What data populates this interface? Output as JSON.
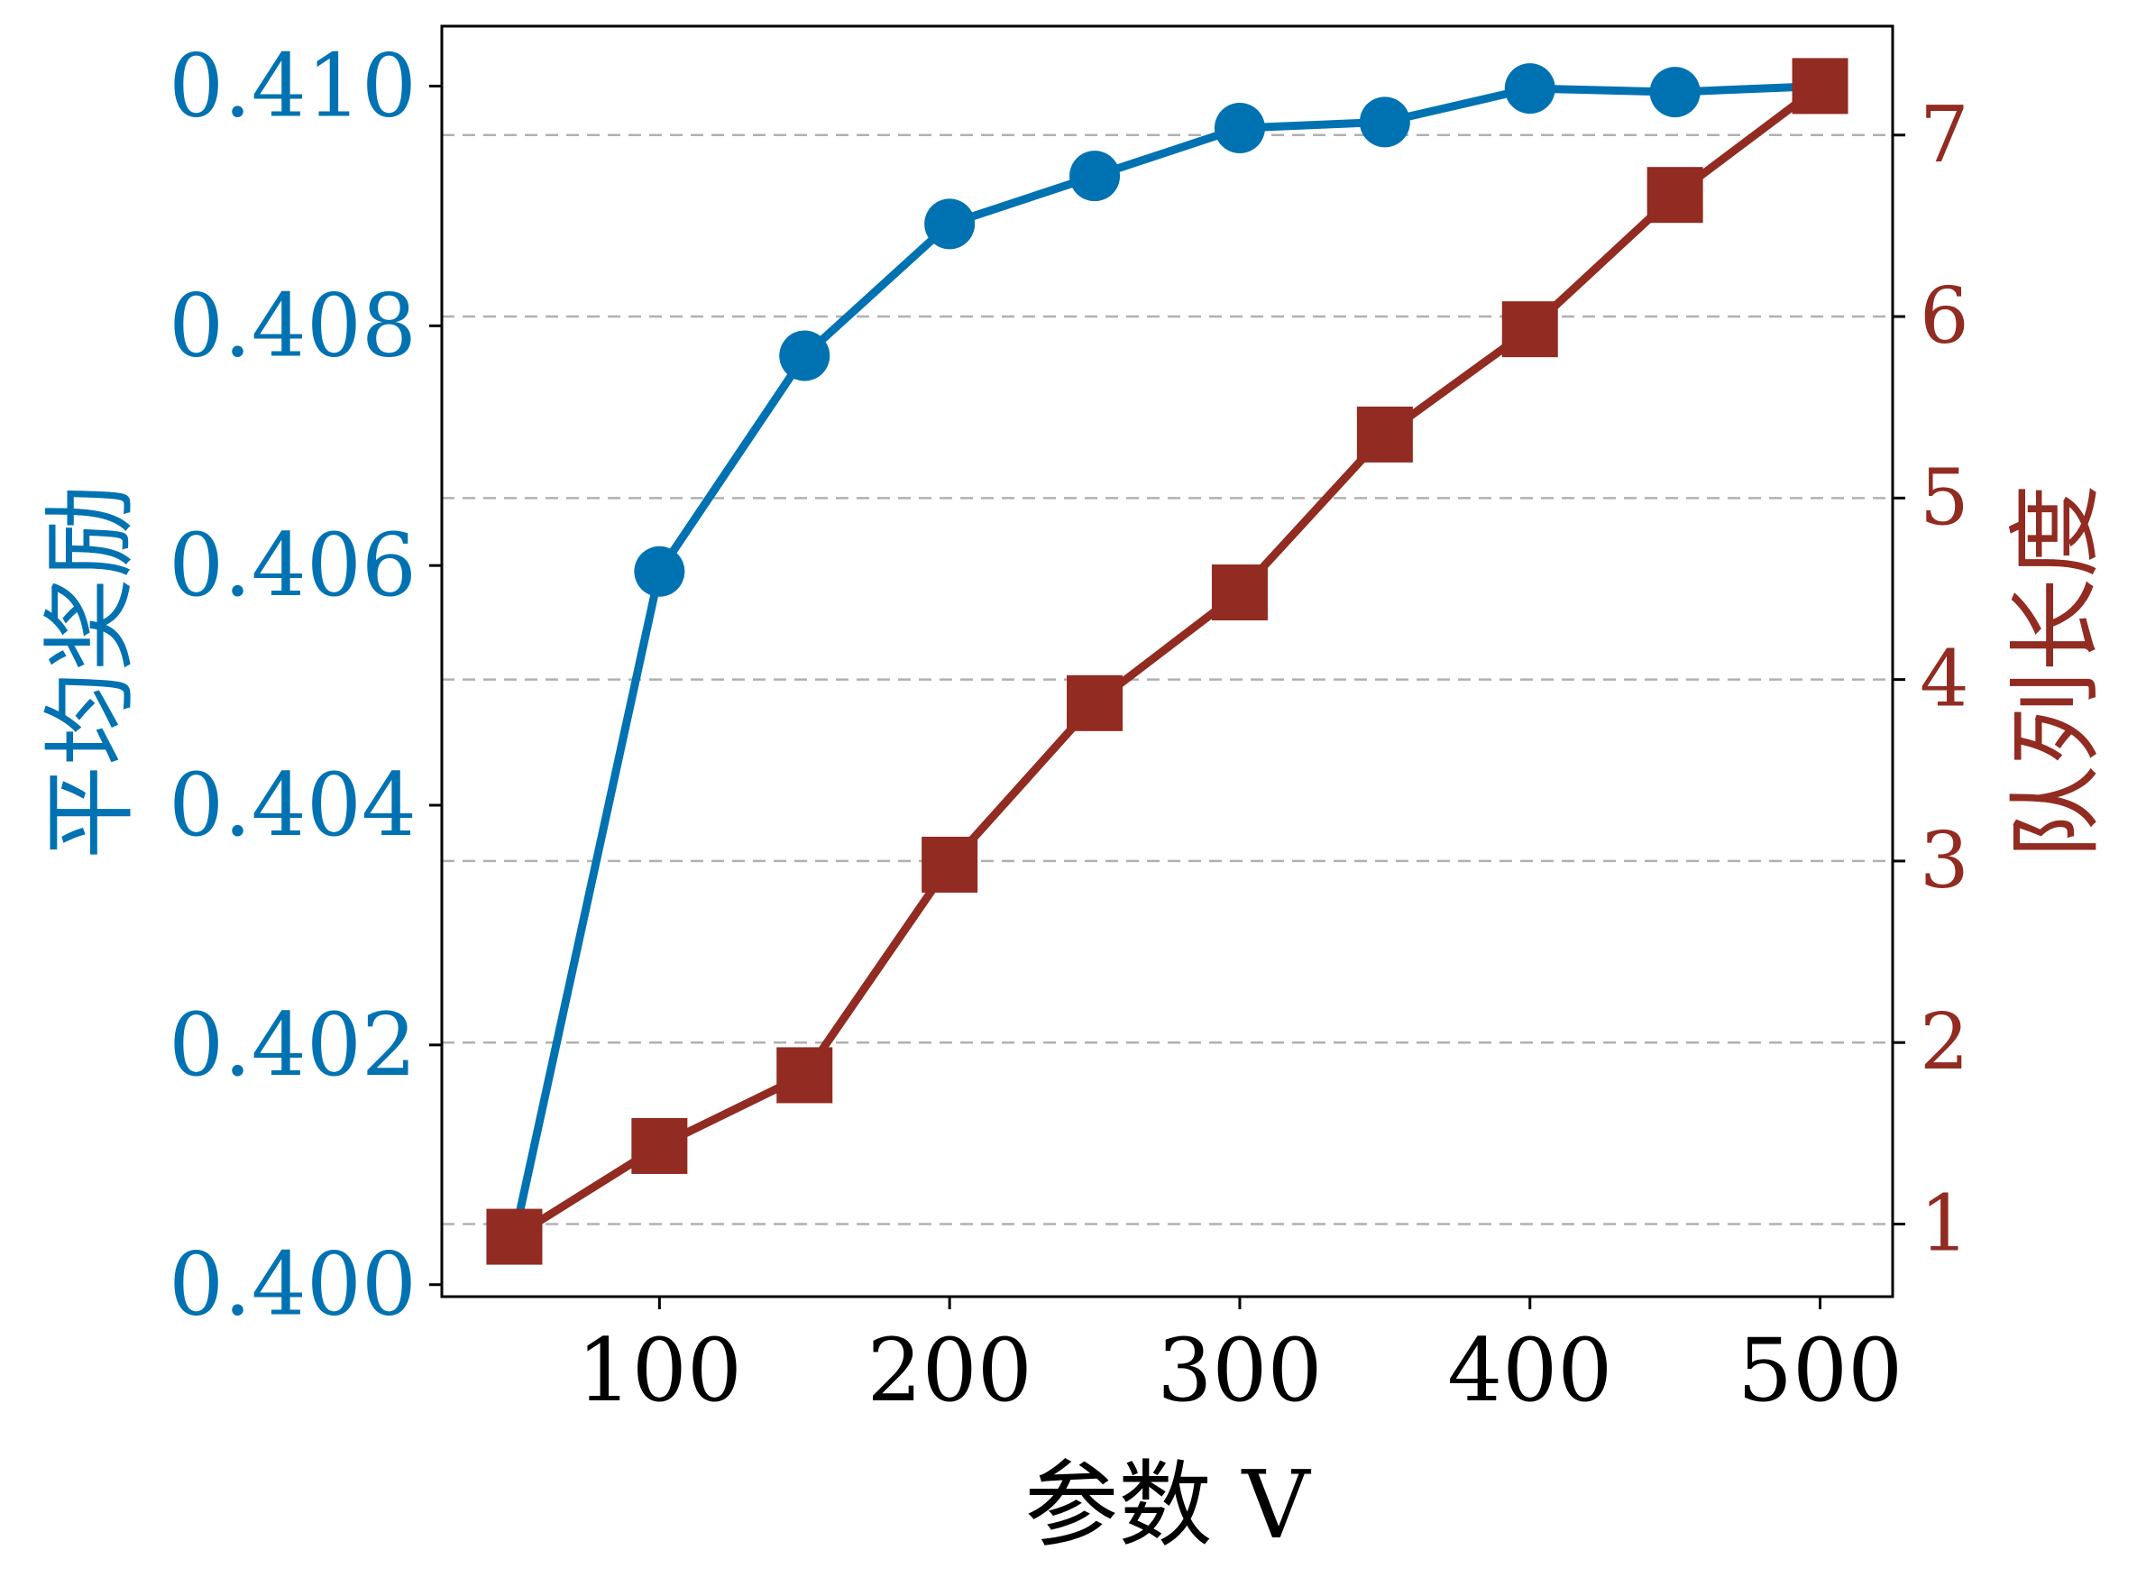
{
  "chart_data": {
    "type": "line",
    "x": [
      50,
      100,
      150,
      200,
      250,
      300,
      350,
      400,
      450,
      500
    ],
    "xlabel": "参数 V",
    "xlim": [
      25,
      525
    ],
    "xticks": [
      100,
      200,
      300,
      400,
      500
    ],
    "y_left": {
      "label": "平均奖励",
      "color": "#0072b2",
      "lim": [
        0.3999,
        0.4105
      ],
      "ticks": [
        "0.400",
        "0.402",
        "0.404",
        "0.406",
        "0.408",
        "0.410"
      ]
    },
    "y_right": {
      "label": "队列长度",
      "color": "#922b21",
      "lim": [
        0.6,
        7.6
      ],
      "ticks": [
        1,
        2,
        3,
        4,
        5,
        6,
        7
      ]
    },
    "grid": "horizontal dashed (right axis ticks)",
    "series": [
      {
        "axis": "left",
        "marker": "circle",
        "color": "#0072b2",
        "values": [
          0.4004,
          0.40595,
          0.40775,
          0.40885,
          0.40925,
          0.40965,
          0.4097,
          0.40998,
          0.40995,
          0.41
        ]
      },
      {
        "axis": "right",
        "marker": "square",
        "color": "#922b21",
        "values": [
          0.93,
          1.43,
          1.82,
          2.98,
          3.87,
          4.48,
          5.35,
          5.93,
          6.67,
          7.27
        ]
      }
    ]
  }
}
